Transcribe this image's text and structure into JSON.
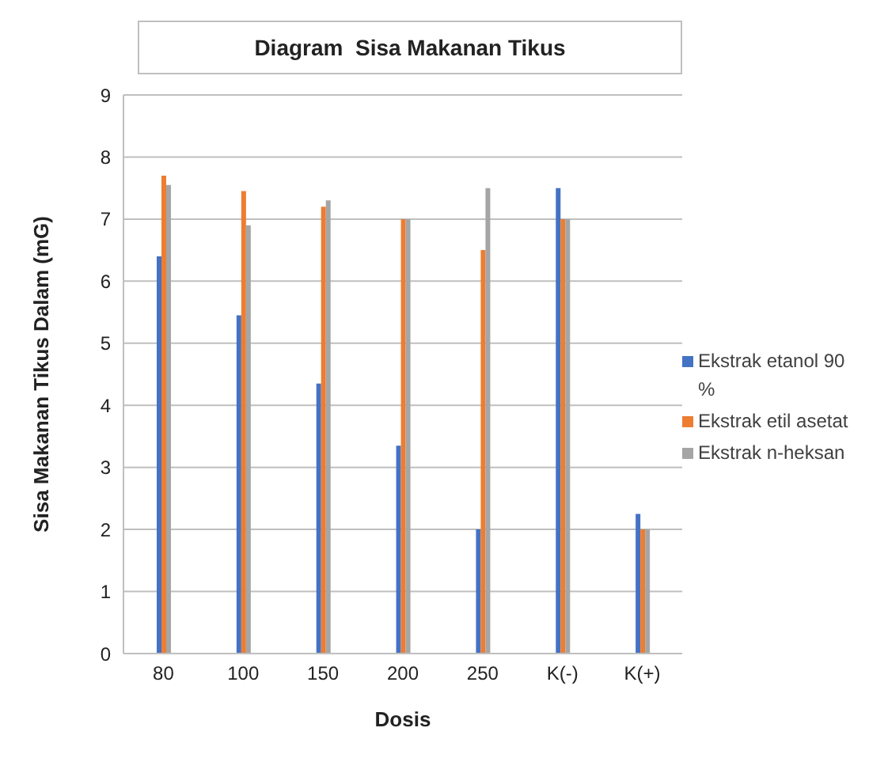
{
  "chart_data": {
    "type": "bar",
    "title": "Diagram  Sisa Makanan Tikus",
    "xlabel": "Dosis",
    "ylabel": "Sisa Makanan Tikus Dalam (mG)",
    "categories": [
      "80",
      "100",
      "150",
      "200",
      "250",
      "K(-)",
      "K(+)"
    ],
    "series": [
      {
        "name": "Ekstrak etanol 90 %",
        "color": "#4472c4",
        "values": [
          6.4,
          5.45,
          4.35,
          3.35,
          2.0,
          7.5,
          2.25
        ]
      },
      {
        "name": "Ekstrak etil asetat",
        "color": "#ed7d31",
        "values": [
          7.7,
          7.45,
          7.2,
          7.0,
          6.5,
          7.0,
          2.0
        ]
      },
      {
        "name": "Ekstrak n-heksan",
        "color": "#a5a5a5",
        "values": [
          7.55,
          6.9,
          7.3,
          7.0,
          7.5,
          7.0,
          2.0
        ]
      }
    ],
    "ylim": [
      0,
      9
    ],
    "yticks": [
      0,
      1,
      2,
      3,
      4,
      5,
      6,
      7,
      8,
      9
    ],
    "grid": "y",
    "legend": "right"
  }
}
